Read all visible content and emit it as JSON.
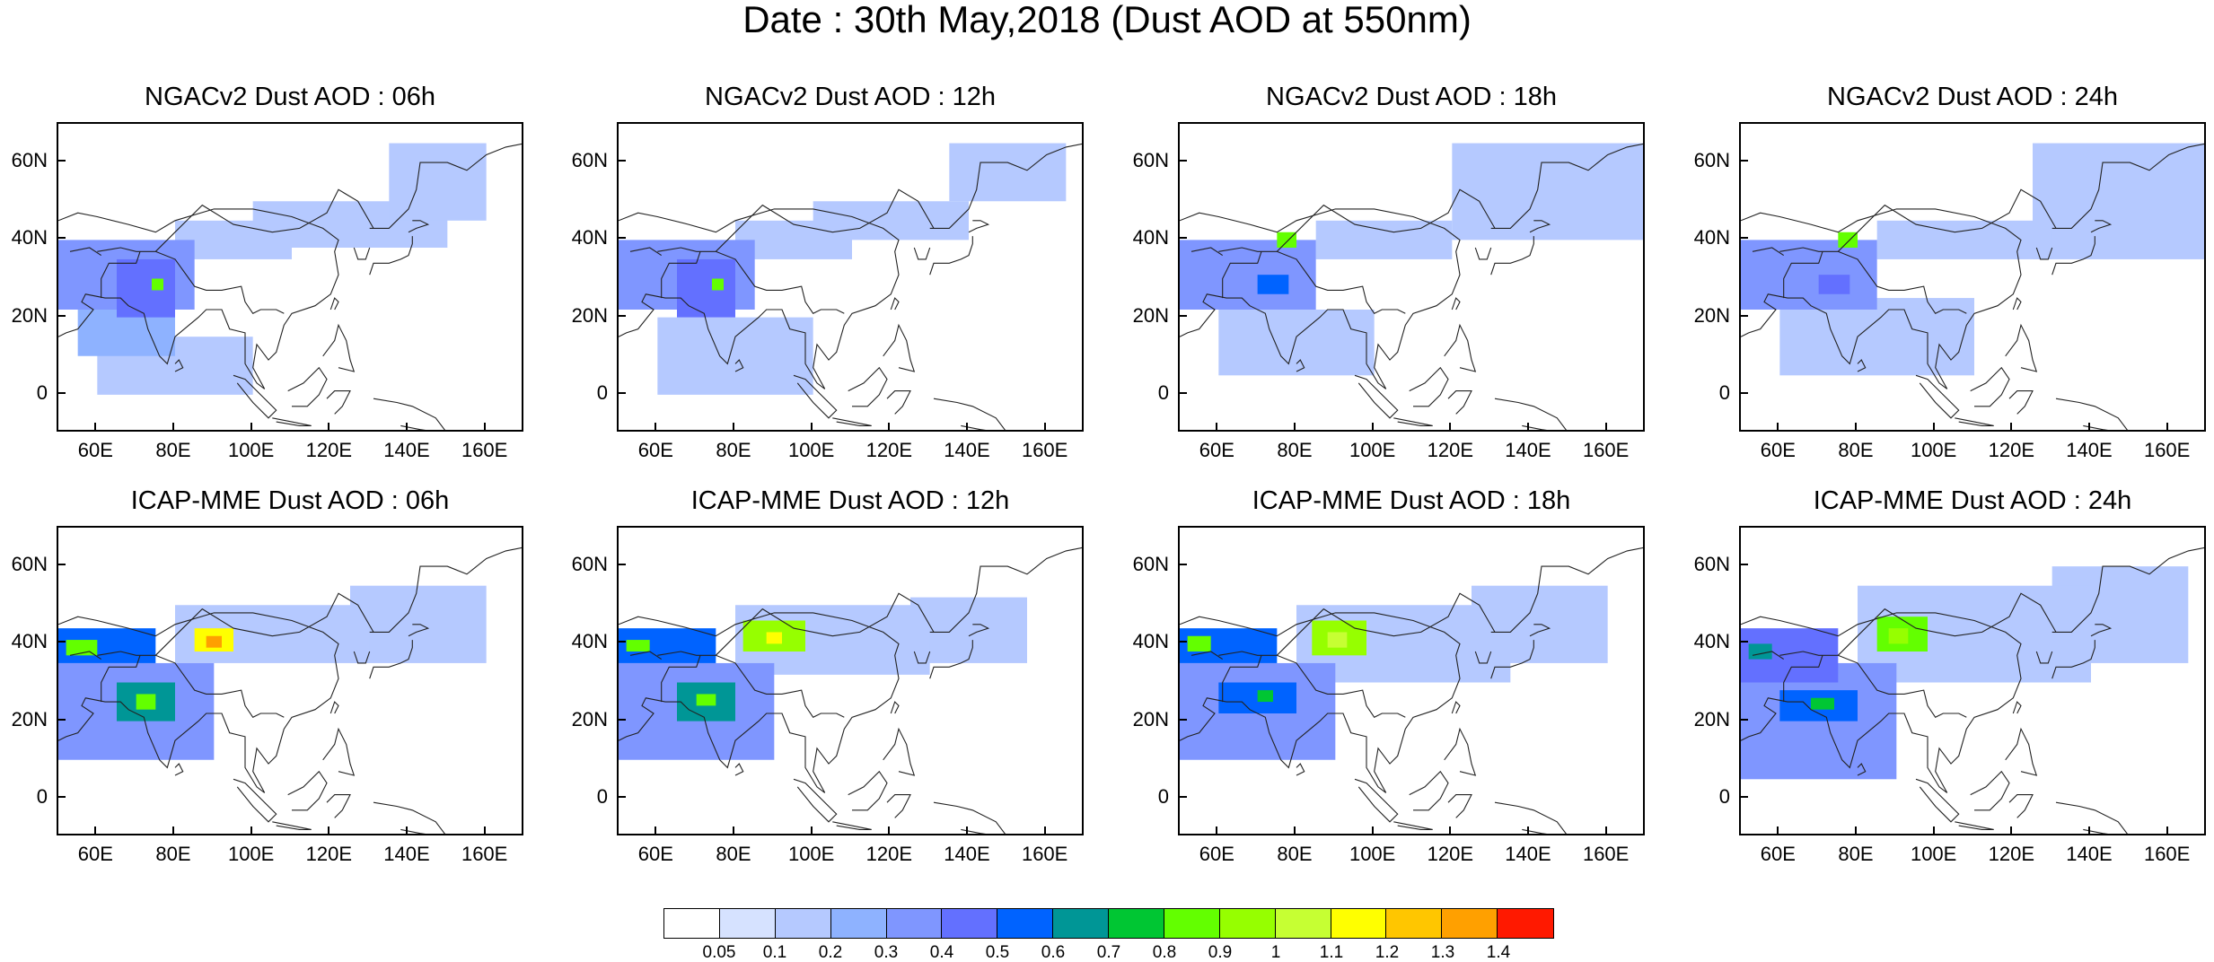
{
  "title": "Date : 30th May,2018 (Dust AOD at 550nm)",
  "x_ticks": [
    "60E",
    "80E",
    "100E",
    "120E",
    "140E",
    "160E"
  ],
  "y_ticks": [
    "60N",
    "40N",
    "20N",
    "0"
  ],
  "map_extent": {
    "lon_min": 50,
    "lon_max": 170,
    "lat_min": -10,
    "lat_max": 70
  },
  "panels": [
    {
      "title": "NGACv2 Dust AOD : 06h",
      "model": "NGACv2",
      "hour": "06h",
      "plumes": [
        [
          50,
          85,
          22,
          40,
          0.3
        ],
        [
          65,
          80,
          20,
          35,
          0.4
        ],
        [
          74,
          77,
          27,
          30,
          0.8
        ],
        [
          80,
          110,
          35,
          45,
          0.15
        ],
        [
          100,
          150,
          38,
          50,
          0.1
        ],
        [
          135,
          160,
          45,
          65,
          0.1
        ],
        [
          55,
          80,
          10,
          22,
          0.2
        ],
        [
          60,
          100,
          0,
          15,
          0.12
        ]
      ]
    },
    {
      "title": "NGACv2 Dust AOD : 12h",
      "model": "NGACv2",
      "hour": "12h",
      "plumes": [
        [
          50,
          85,
          22,
          40,
          0.3
        ],
        [
          65,
          80,
          20,
          35,
          0.4
        ],
        [
          74,
          77,
          27,
          30,
          0.8
        ],
        [
          80,
          110,
          35,
          45,
          0.15
        ],
        [
          100,
          140,
          40,
          50,
          0.1
        ],
        [
          135,
          165,
          50,
          65,
          0.1
        ],
        [
          60,
          100,
          0,
          20,
          0.15
        ]
      ]
    },
    {
      "title": "NGACv2 Dust AOD : 18h",
      "model": "NGACv2",
      "hour": "18h",
      "plumes": [
        [
          50,
          85,
          22,
          40,
          0.3
        ],
        [
          75,
          80,
          38,
          42,
          0.8
        ],
        [
          70,
          78,
          26,
          31,
          0.5
        ],
        [
          85,
          120,
          35,
          45,
          0.15
        ],
        [
          120,
          170,
          40,
          65,
          0.1
        ],
        [
          60,
          100,
          5,
          22,
          0.15
        ]
      ]
    },
    {
      "title": "NGACv2 Dust AOD : 24h",
      "model": "NGACv2",
      "hour": "24h",
      "plumes": [
        [
          50,
          85,
          22,
          40,
          0.3
        ],
        [
          75,
          80,
          38,
          42,
          0.8
        ],
        [
          70,
          78,
          26,
          31,
          0.4
        ],
        [
          85,
          130,
          35,
          45,
          0.15
        ],
        [
          125,
          170,
          35,
          65,
          0.12
        ],
        [
          60,
          110,
          5,
          25,
          0.15
        ]
      ]
    },
    {
      "title": "ICAP-MME Dust AOD : 06h",
      "model": "ICAP-MME",
      "hour": "06h",
      "plumes": [
        [
          50,
          75,
          35,
          44,
          0.5
        ],
        [
          52,
          60,
          37,
          41,
          0.8
        ],
        [
          85,
          95,
          38,
          44,
          1.1
        ],
        [
          88,
          92,
          39,
          42,
          1.3
        ],
        [
          65,
          80,
          20,
          30,
          0.6
        ],
        [
          70,
          75,
          23,
          27,
          0.8
        ],
        [
          50,
          90,
          10,
          35,
          0.3
        ],
        [
          80,
          130,
          35,
          50,
          0.15
        ],
        [
          125,
          160,
          35,
          55,
          0.1
        ]
      ]
    },
    {
      "title": "ICAP-MME Dust AOD : 12h",
      "model": "ICAP-MME",
      "hour": "12h",
      "plumes": [
        [
          50,
          75,
          35,
          44,
          0.5
        ],
        [
          52,
          58,
          38,
          41,
          0.8
        ],
        [
          82,
          98,
          38,
          46,
          0.9
        ],
        [
          88,
          92,
          40,
          43,
          1.1
        ],
        [
          65,
          80,
          20,
          30,
          0.6
        ],
        [
          70,
          75,
          24,
          27,
          0.8
        ],
        [
          50,
          90,
          10,
          35,
          0.3
        ],
        [
          80,
          130,
          32,
          50,
          0.15
        ],
        [
          125,
          155,
          35,
          52,
          0.1
        ]
      ]
    },
    {
      "title": "ICAP-MME Dust AOD : 18h",
      "model": "ICAP-MME",
      "hour": "18h",
      "plumes": [
        [
          50,
          75,
          35,
          44,
          0.5
        ],
        [
          52,
          58,
          38,
          42,
          0.8
        ],
        [
          84,
          98,
          37,
          46,
          0.9
        ],
        [
          88,
          93,
          39,
          43,
          1.0
        ],
        [
          60,
          80,
          22,
          30,
          0.5
        ],
        [
          70,
          74,
          25,
          28,
          0.7
        ],
        [
          50,
          90,
          10,
          35,
          0.3
        ],
        [
          80,
          135,
          30,
          50,
          0.15
        ],
        [
          125,
          160,
          35,
          55,
          0.1
        ]
      ]
    },
    {
      "title": "ICAP-MME Dust AOD : 24h",
      "model": "ICAP-MME",
      "hour": "24h",
      "plumes": [
        [
          50,
          75,
          30,
          44,
          0.4
        ],
        [
          52,
          58,
          36,
          40,
          0.6
        ],
        [
          85,
          98,
          38,
          47,
          0.8
        ],
        [
          88,
          93,
          40,
          44,
          0.95
        ],
        [
          60,
          80,
          20,
          28,
          0.5
        ],
        [
          68,
          74,
          23,
          26,
          0.7
        ],
        [
          50,
          90,
          5,
          35,
          0.3
        ],
        [
          80,
          140,
          30,
          55,
          0.15
        ],
        [
          130,
          165,
          35,
          60,
          0.1
        ]
      ]
    }
  ],
  "colorbar": {
    "colors": [
      "#ffffff",
      "#d6e2ff",
      "#b5c9ff",
      "#8eb2ff",
      "#7f96ff",
      "#6370ff",
      "#0063ff",
      "#009696",
      "#00c633",
      "#63ff00",
      "#96ff00",
      "#c6ff33",
      "#ffff00",
      "#ffc600",
      "#ffa000",
      "#ff7c00",
      "#ff1900"
    ],
    "labels": [
      "0.05",
      "0.1",
      "0.2",
      "0.3",
      "0.4",
      "0.5",
      "0.6",
      "0.7",
      "0.8",
      "0.9",
      "1",
      "1.1",
      "1.2",
      "1.3",
      "1.4"
    ],
    "thresholds": [
      0.05,
      0.1,
      0.2,
      0.3,
      0.4,
      0.5,
      0.6,
      0.7,
      0.8,
      0.9,
      1,
      1.1,
      1.2,
      1.3,
      1.4
    ]
  }
}
